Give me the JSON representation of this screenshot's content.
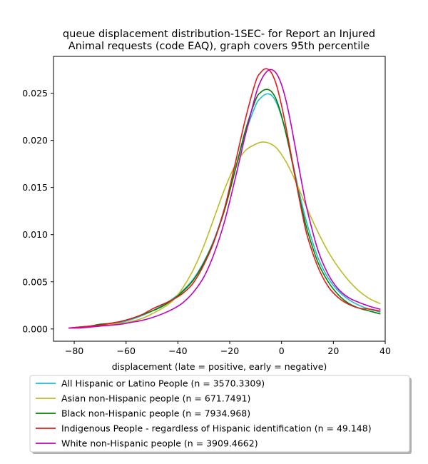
{
  "chart_data": {
    "type": "line",
    "title_lines": [
      "queue displacement distribution-1SEC-  for Report an Injured",
      "Animal  requests (code EAQ), graph covers 95th percentile"
    ],
    "xlabel": "displacement (late = positive, early = negative)",
    "ylabel": "",
    "xlim": [
      -88,
      40
    ],
    "ylim": [
      -0.0013,
      0.0289
    ],
    "xticks": [
      -80,
      -60,
      -40,
      -20,
      0,
      20,
      40
    ],
    "xtick_labels": [
      "−80",
      "−60",
      "−40",
      "−20",
      "0",
      "20",
      "40"
    ],
    "yticks": [
      0.0,
      0.005,
      0.01,
      0.015,
      0.02,
      0.025
    ],
    "ytick_labels": [
      "0.000",
      "0.005",
      "0.010",
      "0.015",
      "0.020",
      "0.025"
    ],
    "grid": false,
    "legend_position": "below",
    "x": [
      -82,
      -78,
      -74,
      -70,
      -66,
      -62,
      -58,
      -54,
      -50,
      -46,
      -42,
      -38,
      -34,
      -30,
      -26,
      -22,
      -18,
      -14,
      -10,
      -8,
      -6,
      -4,
      -2,
      0,
      2,
      4,
      6,
      8,
      10,
      14,
      18,
      22,
      26,
      30,
      34,
      38
    ],
    "series": [
      {
        "name": "All Hispanic or Latino People (n = 3570.3309)",
        "color": "#17becf",
        "values": [
          0.0001,
          0.0002,
          0.0003,
          0.0004,
          0.0005,
          0.0007,
          0.001,
          0.0014,
          0.0019,
          0.0025,
          0.0032,
          0.0041,
          0.0053,
          0.0071,
          0.0095,
          0.0128,
          0.0168,
          0.0207,
          0.0237,
          0.0245,
          0.0249,
          0.0248,
          0.024,
          0.0225,
          0.0204,
          0.018,
          0.0155,
          0.0131,
          0.011,
          0.0076,
          0.0054,
          0.004,
          0.0031,
          0.0025,
          0.0021,
          0.0018
        ]
      },
      {
        "name": "Asian non-Hispanic people (n = 671.7491)",
        "color": "#bcbd22",
        "values": [
          0.0001,
          0.0002,
          0.0003,
          0.0004,
          0.0005,
          0.0006,
          0.0008,
          0.0011,
          0.0016,
          0.0022,
          0.003,
          0.0044,
          0.0063,
          0.0088,
          0.0118,
          0.0148,
          0.0173,
          0.0189,
          0.0196,
          0.0198,
          0.0198,
          0.0196,
          0.0192,
          0.0185,
          0.0176,
          0.0165,
          0.0153,
          0.014,
          0.0127,
          0.0103,
          0.0082,
          0.0065,
          0.0051,
          0.004,
          0.0032,
          0.0027
        ]
      },
      {
        "name": "Black non-Hispanic people (n = 7934.968)",
        "color": "#008000",
        "values": [
          0.0001,
          0.0002,
          0.0003,
          0.0005,
          0.0006,
          0.0008,
          0.0011,
          0.0015,
          0.0019,
          0.0024,
          0.0031,
          0.004,
          0.0052,
          0.007,
          0.0094,
          0.0126,
          0.0167,
          0.021,
          0.0243,
          0.0251,
          0.0254,
          0.0252,
          0.0243,
          0.0226,
          0.0204,
          0.0178,
          0.0151,
          0.0126,
          0.0104,
          0.0071,
          0.005,
          0.0036,
          0.0027,
          0.0022,
          0.0019,
          0.0016
        ]
      },
      {
        "name": "Indigenous People - regardless of Hispanic identification (n = 49.148)",
        "color": "#e41a1c",
        "values": [
          0.0001,
          0.0002,
          0.0003,
          0.0004,
          0.0006,
          0.0008,
          0.0011,
          0.0015,
          0.0021,
          0.0026,
          0.0031,
          0.0038,
          0.0049,
          0.0068,
          0.0093,
          0.0128,
          0.0174,
          0.0222,
          0.0262,
          0.0272,
          0.0276,
          0.0272,
          0.0259,
          0.0237,
          0.021,
          0.018,
          0.015,
          0.0122,
          0.0098,
          0.0066,
          0.0045,
          0.0033,
          0.0026,
          0.0022,
          0.0021,
          0.0019
        ]
      },
      {
        "name": "White non-Hispanic people (n = 3909.4662)",
        "color": "#c000c0",
        "values": [
          0.0001,
          0.0001,
          0.0002,
          0.0003,
          0.0004,
          0.0005,
          0.0007,
          0.0009,
          0.0012,
          0.0016,
          0.0021,
          0.0028,
          0.0039,
          0.0055,
          0.008,
          0.0114,
          0.0158,
          0.0205,
          0.0248,
          0.0263,
          0.0272,
          0.0275,
          0.0271,
          0.0259,
          0.0239,
          0.0212,
          0.0182,
          0.0152,
          0.0125,
          0.0084,
          0.0058,
          0.0042,
          0.0033,
          0.0028,
          0.0024,
          0.0021
        ]
      }
    ]
  }
}
